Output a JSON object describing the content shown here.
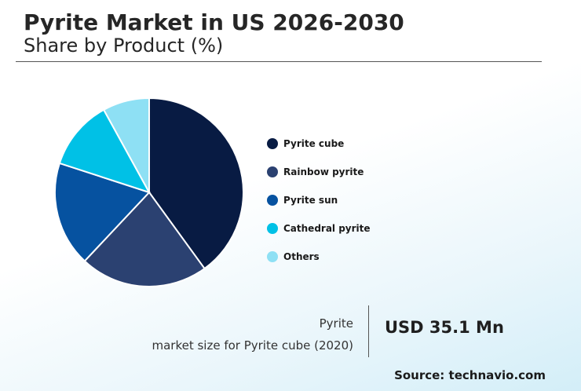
{
  "header": {
    "title": "Pyrite Market in US 2026-2030",
    "subtitle": "Share by Product (%)"
  },
  "chart_data": {
    "type": "pie",
    "categories": [
      "Pyrite cube",
      "Rainbow pyrite",
      "Pyrite sun",
      "Cathedral pyrite",
      "Others"
    ],
    "values": [
      40,
      22,
      18,
      12,
      8
    ],
    "colors": [
      "#081b43",
      "#2b4171",
      "#0652a0",
      "#00c1e6",
      "#8ee0f4"
    ],
    "legend_position": "right",
    "start_angle": "12 o'clock",
    "direction": "clockwise"
  },
  "stat": {
    "line1": "Pyrite",
    "line2": "market size for Pyrite cube (2020)",
    "value": "USD 35.1 Mn"
  },
  "footer": {
    "source": "Source: technavio.com"
  }
}
